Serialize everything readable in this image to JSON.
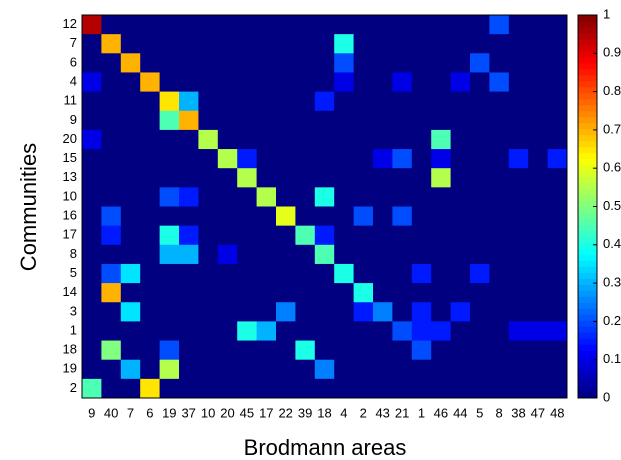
{
  "chart_data": {
    "type": "heatmap",
    "x_label": "Brodmann areas",
    "y_label": "Communities",
    "colormap": "jet",
    "categories": [
      "9",
      "40",
      "7",
      "6",
      "19",
      "37",
      "10",
      "20",
      "45",
      "17",
      "22",
      "39",
      "18",
      "4",
      "2",
      "43",
      "21",
      "1",
      "46",
      "44",
      "5",
      "8",
      "38",
      "47",
      "48"
    ],
    "rows": [
      "12",
      "7",
      "6",
      "4",
      "11",
      "9",
      "20",
      "15",
      "13",
      "10",
      "16",
      "17",
      "8",
      "5",
      "14",
      "3",
      "1",
      "18",
      "19",
      "2"
    ],
    "values": [
      [
        0.95,
        0,
        0,
        0,
        0,
        0,
        0,
        0,
        0,
        0,
        0,
        0,
        0,
        0,
        0,
        0,
        0,
        0,
        0,
        0,
        0,
        0.2,
        0,
        0,
        0
      ],
      [
        0,
        0.7,
        0,
        0,
        0,
        0,
        0,
        0,
        0,
        0,
        0,
        0,
        0,
        0.4,
        0,
        0,
        0,
        0,
        0,
        0,
        0,
        0,
        0,
        0,
        0
      ],
      [
        0,
        0,
        0.7,
        0,
        0,
        0,
        0,
        0,
        0,
        0,
        0,
        0,
        0,
        0.2,
        0,
        0,
        0,
        0,
        0,
        0,
        0.2,
        0,
        0,
        0,
        0
      ],
      [
        0.1,
        0,
        0,
        0.7,
        0,
        0,
        0,
        0,
        0,
        0,
        0,
        0,
        0,
        0.1,
        0,
        0,
        0.1,
        0,
        0,
        0.1,
        0,
        0.2,
        0,
        0,
        0
      ],
      [
        0,
        0,
        0,
        0,
        0.65,
        0.3,
        0,
        0,
        0,
        0,
        0,
        0,
        0.15,
        0,
        0,
        0,
        0,
        0,
        0,
        0,
        0,
        0,
        0,
        0,
        0
      ],
      [
        0,
        0,
        0,
        0,
        0.45,
        0.7,
        0,
        0,
        0,
        0,
        0,
        0,
        0,
        0,
        0,
        0,
        0,
        0,
        0,
        0,
        0,
        0,
        0,
        0,
        0
      ],
      [
        0.1,
        0,
        0,
        0,
        0,
        0,
        0.55,
        0,
        0,
        0,
        0,
        0,
        0,
        0,
        0,
        0,
        0,
        0,
        0.45,
        0,
        0,
        0,
        0,
        0,
        0
      ],
      [
        0,
        0,
        0,
        0,
        0,
        0,
        0,
        0.55,
        0.15,
        0,
        0,
        0,
        0,
        0,
        0,
        0.1,
        0.2,
        0,
        0.1,
        0,
        0,
        0,
        0.15,
        0,
        0.15
      ],
      [
        0,
        0,
        0,
        0,
        0,
        0,
        0,
        0,
        0.55,
        0,
        0,
        0,
        0,
        0,
        0,
        0,
        0,
        0,
        0.55,
        0,
        0,
        0,
        0,
        0,
        0
      ],
      [
        0,
        0,
        0,
        0,
        0.2,
        0.15,
        0,
        0,
        0,
        0.55,
        0,
        0,
        0.4,
        0,
        0,
        0,
        0,
        0,
        0,
        0,
        0,
        0,
        0,
        0,
        0
      ],
      [
        0,
        0.2,
        0,
        0,
        0,
        0,
        0,
        0,
        0,
        0,
        0.6,
        0,
        0,
        0,
        0.2,
        0,
        0.2,
        0,
        0,
        0,
        0,
        0,
        0,
        0,
        0
      ],
      [
        0,
        0.15,
        0,
        0,
        0.4,
        0.15,
        0,
        0,
        0,
        0,
        0,
        0.45,
        0.15,
        0,
        0,
        0,
        0,
        0,
        0,
        0,
        0,
        0,
        0,
        0,
        0
      ],
      [
        0,
        0,
        0,
        0,
        0.3,
        0.3,
        0,
        0.1,
        0,
        0,
        0,
        0,
        0.45,
        0,
        0,
        0,
        0,
        0,
        0,
        0,
        0,
        0,
        0,
        0,
        0
      ],
      [
        0,
        0.2,
        0.35,
        0,
        0,
        0,
        0,
        0,
        0,
        0,
        0,
        0,
        0,
        0.4,
        0,
        0,
        0,
        0.15,
        0,
        0,
        0.15,
        0,
        0,
        0,
        0
      ],
      [
        0,
        0.7,
        0,
        0,
        0,
        0,
        0,
        0,
        0,
        0,
        0,
        0,
        0,
        0,
        0.4,
        0,
        0,
        0,
        0,
        0,
        0,
        0,
        0,
        0,
        0
      ],
      [
        0,
        0,
        0.35,
        0,
        0,
        0,
        0,
        0,
        0,
        0,
        0.25,
        0,
        0,
        0,
        0.15,
        0.25,
        0,
        0.15,
        0,
        0.15,
        0,
        0,
        0,
        0,
        0
      ],
      [
        0,
        0,
        0,
        0,
        0,
        0,
        0,
        0,
        0.4,
        0.3,
        0,
        0,
        0,
        0,
        0,
        0,
        0.2,
        0.15,
        0.15,
        0,
        0,
        0,
        0.1,
        0.1,
        0.1
      ],
      [
        0,
        0.5,
        0,
        0,
        0.2,
        0,
        0,
        0,
        0,
        0,
        0,
        0.4,
        0,
        0,
        0,
        0,
        0,
        0.2,
        0,
        0,
        0,
        0,
        0,
        0,
        0
      ],
      [
        0,
        0,
        0.3,
        0,
        0.55,
        0,
        0,
        0,
        0,
        0,
        0,
        0,
        0.25,
        0,
        0,
        0,
        0,
        0,
        0,
        0,
        0,
        0,
        0,
        0,
        0
      ],
      [
        0.45,
        0,
        0,
        0.65,
        0,
        0,
        0,
        0,
        0,
        0,
        0,
        0,
        0,
        0,
        0,
        0,
        0,
        0,
        0,
        0,
        0,
        0,
        0,
        0,
        0
      ]
    ],
    "clim": [
      0,
      1
    ],
    "cticks": [
      0,
      0.1,
      0.2,
      0.3,
      0.4,
      0.5,
      0.6,
      0.7,
      0.8,
      0.9,
      1
    ]
  }
}
